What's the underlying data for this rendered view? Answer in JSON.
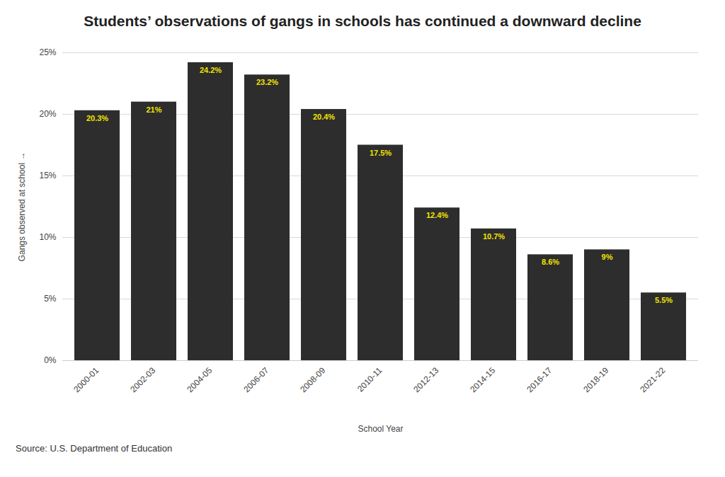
{
  "chart_data": {
    "type": "bar",
    "title": "Students’ observations of gangs in schools has continued a downward decline",
    "x_label": "School Year",
    "y_label": "Gangs observed at school",
    "source": "Source: U.S. Department of Education",
    "categories": [
      "2000-01",
      "2002-03",
      "2004-05",
      "2006-07",
      "2008-09",
      "2010-11",
      "2012-13",
      "2014-15",
      "2016-17",
      "2018-19",
      "2021-22"
    ],
    "values": [
      20.3,
      21,
      24.2,
      23.2,
      20.4,
      17.5,
      12.4,
      10.7,
      8.6,
      9,
      5.5
    ],
    "value_labels": [
      "20.3%",
      "21%",
      "24.2%",
      "23.2%",
      "20.4%",
      "17.5%",
      "12.4%",
      "10.7%",
      "8.6%",
      "9%",
      "5.5%"
    ],
    "data_labels": true,
    "color": "#2d2d2d",
    "ylim": [
      0,
      25
    ],
    "yticks": [
      {
        "value": 0,
        "label": "0%"
      },
      {
        "value": 5,
        "label": "5%"
      },
      {
        "value": 10,
        "label": "10%"
      },
      {
        "value": 15,
        "label": "15%"
      },
      {
        "value": 20,
        "label": "20%"
      },
      {
        "value": 25,
        "label": "25%"
      }
    ],
    "grid": true
  }
}
